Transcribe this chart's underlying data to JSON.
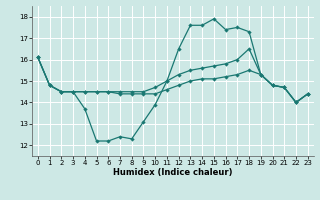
{
  "xlabel": "Humidex (Indice chaleur)",
  "bg_color": "#cde8e5",
  "grid_color": "#ffffff",
  "line_color": "#1a7872",
  "xlim": [
    -0.5,
    23.5
  ],
  "ylim": [
    11.5,
    18.5
  ],
  "yticks": [
    12,
    13,
    14,
    15,
    16,
    17,
    18
  ],
  "xticks": [
    0,
    1,
    2,
    3,
    4,
    5,
    6,
    7,
    8,
    9,
    10,
    11,
    12,
    13,
    14,
    15,
    16,
    17,
    18,
    19,
    20,
    21,
    22,
    23
  ],
  "line1_y": [
    16.1,
    14.8,
    14.5,
    14.5,
    13.7,
    12.2,
    12.2,
    12.4,
    12.3,
    13.1,
    13.9,
    15.0,
    16.5,
    17.6,
    17.6,
    17.9,
    17.4,
    17.5,
    17.3,
    15.3,
    14.8,
    14.7,
    14.0,
    14.4
  ],
  "line2_y": [
    16.1,
    14.8,
    14.5,
    14.5,
    14.5,
    14.5,
    14.5,
    14.5,
    14.5,
    14.5,
    14.7,
    15.0,
    15.3,
    15.5,
    15.6,
    15.7,
    15.8,
    16.0,
    16.5,
    15.3,
    14.8,
    14.7,
    14.0,
    14.4
  ],
  "line3_y": [
    16.1,
    14.8,
    14.5,
    14.5,
    14.5,
    14.5,
    14.5,
    14.4,
    14.4,
    14.4,
    14.4,
    14.6,
    14.8,
    15.0,
    15.1,
    15.1,
    15.2,
    15.3,
    15.5,
    15.3,
    14.8,
    14.7,
    14.0,
    14.4
  ]
}
